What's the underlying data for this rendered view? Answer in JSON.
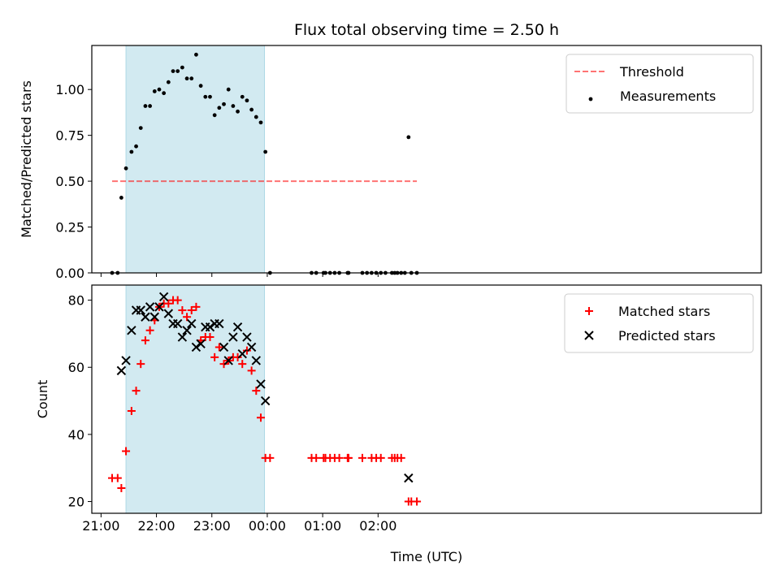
{
  "chart_data": [
    {
      "type": "scatter",
      "panel": "top",
      "title": "Flux total observing time = 2.50 h",
      "xlabel": "",
      "ylabel": "Matched/Predicted stars",
      "x_ticks": [
        "21:00",
        "22:00",
        "23:00",
        "00:00",
        "01:00",
        "02:00"
      ],
      "y_ticks": [
        "0.00",
        "0.25",
        "0.50",
        "0.75",
        "1.00"
      ],
      "xlim_minutes_from_2100": [
        -10,
        715
      ],
      "ylim": [
        0.0,
        1.24
      ],
      "grid": false,
      "legend_position": "upper right",
      "shaded_interval": {
        "start": "21:27",
        "end": "23:57",
        "color": "#add8e6"
      },
      "threshold": {
        "name": "Threshold",
        "y": 0.5,
        "x_start": "21:12",
        "x_end": "02:42",
        "color": "#ff0000",
        "style": "dashed"
      },
      "series": [
        {
          "name": "Measurements",
          "color": "#000000",
          "marker": "dot",
          "points": [
            [
              "21:12",
              0.0
            ],
            [
              "21:18",
              0.0
            ],
            [
              "21:22",
              0.41
            ],
            [
              "21:27",
              0.57
            ],
            [
              "21:33",
              0.66
            ],
            [
              "21:38",
              0.69
            ],
            [
              "21:43",
              0.79
            ],
            [
              "21:48",
              0.91
            ],
            [
              "21:53",
              0.91
            ],
            [
              "21:58",
              0.99
            ],
            [
              "22:03",
              1.0
            ],
            [
              "22:08",
              0.98
            ],
            [
              "22:13",
              1.04
            ],
            [
              "22:18",
              1.1
            ],
            [
              "22:23",
              1.1
            ],
            [
              "22:28",
              1.12
            ],
            [
              "22:33",
              1.06
            ],
            [
              "22:38",
              1.06
            ],
            [
              "22:43",
              1.19
            ],
            [
              "22:48",
              1.02
            ],
            [
              "22:53",
              0.96
            ],
            [
              "22:58",
              0.96
            ],
            [
              "23:03",
              0.86
            ],
            [
              "23:08",
              0.9
            ],
            [
              "23:13",
              0.92
            ],
            [
              "23:18",
              1.0
            ],
            [
              "23:23",
              0.91
            ],
            [
              "23:28",
              0.88
            ],
            [
              "23:33",
              0.96
            ],
            [
              "23:38",
              0.94
            ],
            [
              "23:43",
              0.89
            ],
            [
              "23:48",
              0.85
            ],
            [
              "23:53",
              0.82
            ],
            [
              "23:58",
              0.66
            ],
            [
              "00:03",
              0.0
            ],
            [
              "00:48",
              0.0
            ],
            [
              "00:53",
              0.0
            ],
            [
              "01:01",
              0.0
            ],
            [
              "01:03",
              0.0
            ],
            [
              "01:08",
              0.0
            ],
            [
              "01:13",
              0.0
            ],
            [
              "01:18",
              0.0
            ],
            [
              "01:27",
              0.0
            ],
            [
              "01:28",
              0.0
            ],
            [
              "01:43",
              0.0
            ],
            [
              "01:48",
              0.0
            ],
            [
              "01:53",
              0.0
            ],
            [
              "01:58",
              0.0
            ],
            [
              "02:03",
              0.0
            ],
            [
              "02:08",
              0.0
            ],
            [
              "02:15",
              0.0
            ],
            [
              "02:18",
              0.0
            ],
            [
              "02:21",
              0.0
            ],
            [
              "02:25",
              0.0
            ],
            [
              "02:29",
              0.0
            ],
            [
              "02:33",
              0.74
            ],
            [
              "02:36",
              0.0
            ],
            [
              "02:42",
              0.0
            ]
          ]
        }
      ]
    },
    {
      "type": "scatter",
      "panel": "bottom",
      "title": "",
      "xlabel": "Time (UTC)",
      "ylabel": "Count",
      "x_ticks": [
        "21:00",
        "22:00",
        "23:00",
        "00:00",
        "01:00",
        "02:00"
      ],
      "y_ticks": [
        "20",
        "40",
        "60",
        "80"
      ],
      "xlim_minutes_from_2100": [
        -10,
        715
      ],
      "ylim": [
        16.5,
        84.5
      ],
      "grid": false,
      "legend_position": "upper right",
      "shaded_interval": {
        "start": "21:27",
        "end": "23:57",
        "color": "#add8e6"
      },
      "series": [
        {
          "name": "Matched stars",
          "color": "#ff0000",
          "marker": "plus",
          "points": [
            [
              "21:12",
              27
            ],
            [
              "21:18",
              27
            ],
            [
              "21:22",
              24
            ],
            [
              "21:27",
              35
            ],
            [
              "21:33",
              47
            ],
            [
              "21:38",
              53
            ],
            [
              "21:43",
              61
            ],
            [
              "21:48",
              68
            ],
            [
              "21:53",
              71
            ],
            [
              "21:58",
              74
            ],
            [
              "22:03",
              78
            ],
            [
              "22:08",
              79
            ],
            [
              "22:13",
              79
            ],
            [
              "22:18",
              80
            ],
            [
              "22:23",
              80
            ],
            [
              "22:28",
              77
            ],
            [
              "22:33",
              75
            ],
            [
              "22:38",
              77
            ],
            [
              "22:43",
              78
            ],
            [
              "22:48",
              68
            ],
            [
              "22:53",
              69
            ],
            [
              "22:58",
              69
            ],
            [
              "23:03",
              63
            ],
            [
              "23:08",
              66
            ],
            [
              "23:13",
              61
            ],
            [
              "23:18",
              62
            ],
            [
              "23:23",
              63
            ],
            [
              "23:28",
              63
            ],
            [
              "23:33",
              61
            ],
            [
              "23:38",
              65
            ],
            [
              "23:43",
              59
            ],
            [
              "23:48",
              53
            ],
            [
              "23:53",
              45
            ],
            [
              "23:58",
              33
            ],
            [
              "00:03",
              33
            ],
            [
              "00:48",
              33
            ],
            [
              "00:53",
              33
            ],
            [
              "01:01",
              33
            ],
            [
              "01:03",
              33
            ],
            [
              "01:08",
              33
            ],
            [
              "01:13",
              33
            ],
            [
              "01:18",
              33
            ],
            [
              "01:27",
              33
            ],
            [
              "01:28",
              33
            ],
            [
              "01:43",
              33
            ],
            [
              "01:53",
              33
            ],
            [
              "01:58",
              33
            ],
            [
              "02:03",
              33
            ],
            [
              "02:15",
              33
            ],
            [
              "02:18",
              33
            ],
            [
              "02:21",
              33
            ],
            [
              "02:25",
              33
            ],
            [
              "02:33",
              20
            ],
            [
              "02:36",
              20
            ],
            [
              "02:42",
              20
            ]
          ]
        },
        {
          "name": "Predicted stars",
          "color": "#000000",
          "marker": "x",
          "points": [
            [
              "21:22",
              59
            ],
            [
              "21:27",
              62
            ],
            [
              "21:33",
              71
            ],
            [
              "21:38",
              77
            ],
            [
              "21:43",
              77
            ],
            [
              "21:48",
              75
            ],
            [
              "21:53",
              78
            ],
            [
              "21:58",
              75
            ],
            [
              "22:03",
              78
            ],
            [
              "22:08",
              81
            ],
            [
              "22:13",
              76
            ],
            [
              "22:18",
              73
            ],
            [
              "22:23",
              73
            ],
            [
              "22:28",
              69
            ],
            [
              "22:33",
              71
            ],
            [
              "22:38",
              73
            ],
            [
              "22:43",
              66
            ],
            [
              "22:48",
              67
            ],
            [
              "22:53",
              72
            ],
            [
              "22:58",
              72
            ],
            [
              "23:03",
              73
            ],
            [
              "23:08",
              73
            ],
            [
              "23:13",
              66
            ],
            [
              "23:18",
              62
            ],
            [
              "23:23",
              69
            ],
            [
              "23:28",
              72
            ],
            [
              "23:33",
              64
            ],
            [
              "23:38",
              69
            ],
            [
              "23:43",
              66
            ],
            [
              "23:48",
              62
            ],
            [
              "23:53",
              55
            ],
            [
              "23:58",
              50
            ],
            [
              "02:33",
              27
            ]
          ]
        }
      ]
    }
  ]
}
